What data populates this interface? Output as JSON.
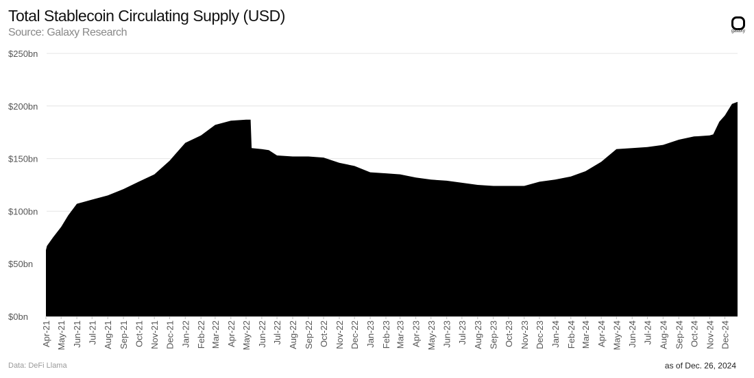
{
  "header": {
    "title": "Total Stablecoin Circulating Supply (USD)",
    "subtitle": "Source: Galaxy Research"
  },
  "logo": {
    "text": "galaxy"
  },
  "footer": {
    "data_source": "Data: DeFi Llama",
    "as_of": "as of Dec. 26, 2024"
  },
  "chart_data": {
    "type": "area",
    "title": "Total Stablecoin Circulating Supply (USD)",
    "unit": "USD billions",
    "ylim": [
      0,
      250
    ],
    "yticks": [
      0,
      50,
      100,
      150,
      200,
      250
    ],
    "ytick_labels": [
      "$0bn",
      "$50bn",
      "$100bn",
      "$150bn",
      "$200bn",
      "$250bn"
    ],
    "grid": "horizontal",
    "fill_color": "#000000",
    "xtick_labels": [
      "Apr-21",
      "May-21",
      "Jun-21",
      "Jul-21",
      "Aug-21",
      "Sep-21",
      "Oct-21",
      "Nov-21",
      "Dec-21",
      "Jan-22",
      "Feb-22",
      "Mar-22",
      "Apr-22",
      "May-22",
      "Jun-22",
      "Jul-22",
      "Aug-22",
      "Sep-22",
      "Oct-22",
      "Nov-22",
      "Dec-22",
      "Jan-23",
      "Feb-23",
      "Mar-23",
      "Apr-23",
      "May-23",
      "Jun-23",
      "Jul-23",
      "Aug-23",
      "Sep-23",
      "Oct-23",
      "Nov-23",
      "Dec-23",
      "Jan-24",
      "Feb-24",
      "Mar-24",
      "Apr-24",
      "May-24",
      "Jun-24",
      "Jul-24",
      "Aug-24",
      "Sep-24",
      "Oct-24",
      "Nov-24",
      "Dec-24"
    ],
    "points": [
      [
        "2021-04-01",
        63
      ],
      [
        "2021-04-03",
        67
      ],
      [
        "2021-04-15",
        75
      ],
      [
        "2021-05-01",
        85
      ],
      [
        "2021-05-15",
        96
      ],
      [
        "2021-06-01",
        107
      ],
      [
        "2021-07-01",
        111
      ],
      [
        "2021-08-01",
        115
      ],
      [
        "2021-09-01",
        121
      ],
      [
        "2021-10-01",
        128
      ],
      [
        "2021-11-01",
        135
      ],
      [
        "2021-12-01",
        148
      ],
      [
        "2022-01-01",
        165
      ],
      [
        "2022-02-01",
        172
      ],
      [
        "2022-03-01",
        182
      ],
      [
        "2022-04-01",
        186
      ],
      [
        "2022-05-01",
        187
      ],
      [
        "2022-05-10",
        187
      ],
      [
        "2022-05-12",
        160
      ],
      [
        "2022-06-01",
        159
      ],
      [
        "2022-06-15",
        158
      ],
      [
        "2022-07-01",
        153
      ],
      [
        "2022-08-01",
        152
      ],
      [
        "2022-09-01",
        152
      ],
      [
        "2022-10-01",
        151
      ],
      [
        "2022-11-01",
        146
      ],
      [
        "2022-12-01",
        143
      ],
      [
        "2023-01-01",
        137
      ],
      [
        "2023-02-01",
        136
      ],
      [
        "2023-03-01",
        135
      ],
      [
        "2023-04-01",
        132
      ],
      [
        "2023-05-01",
        130
      ],
      [
        "2023-06-01",
        129
      ],
      [
        "2023-07-01",
        127
      ],
      [
        "2023-08-01",
        125
      ],
      [
        "2023-09-01",
        124
      ],
      [
        "2023-10-01",
        124
      ],
      [
        "2023-11-01",
        124
      ],
      [
        "2023-12-01",
        128
      ],
      [
        "2024-01-01",
        130
      ],
      [
        "2024-02-01",
        133
      ],
      [
        "2024-03-01",
        138
      ],
      [
        "2024-04-01",
        147
      ],
      [
        "2024-05-01",
        159
      ],
      [
        "2024-06-01",
        160
      ],
      [
        "2024-07-01",
        161
      ],
      [
        "2024-08-01",
        163
      ],
      [
        "2024-09-01",
        168
      ],
      [
        "2024-10-01",
        171
      ],
      [
        "2024-11-01",
        172
      ],
      [
        "2024-11-08",
        173
      ],
      [
        "2024-11-20",
        185
      ],
      [
        "2024-12-01",
        191
      ],
      [
        "2024-12-15",
        202
      ],
      [
        "2024-12-26",
        204
      ]
    ]
  }
}
